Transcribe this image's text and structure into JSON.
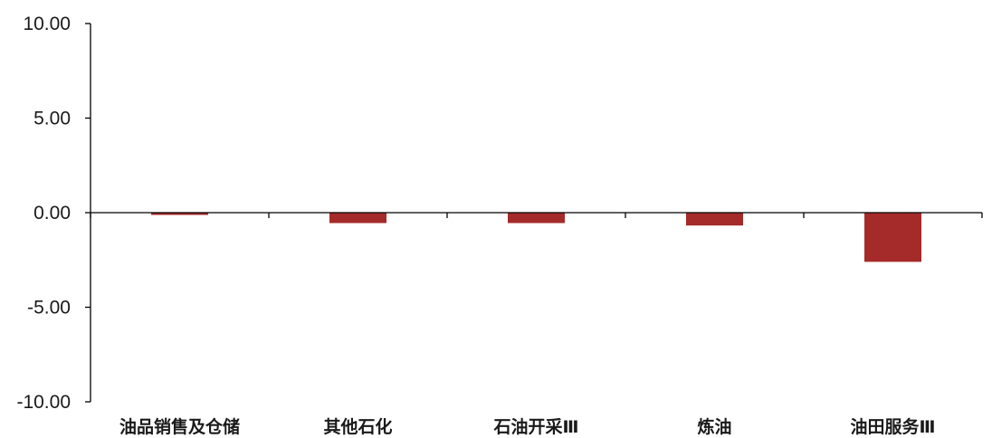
{
  "chart_data": {
    "type": "bar",
    "categories": [
      "油品销售及仓储",
      "其他石化",
      "石油开采Ⅲ",
      "炼油",
      "油田服务Ⅲ"
    ],
    "values": [
      -0.12,
      -0.55,
      -0.55,
      -0.68,
      -2.6
    ],
    "ylim": [
      -10,
      10
    ],
    "yticks": [
      10,
      5,
      0,
      -5,
      -10
    ],
    "ytick_labels": [
      "10.00",
      "5.00",
      "0.00",
      "-5.00",
      "-10.00"
    ],
    "title": "",
    "xlabel": "",
    "ylabel": "",
    "grid": false,
    "legend": "none",
    "bar_color": "#a52a2a"
  }
}
